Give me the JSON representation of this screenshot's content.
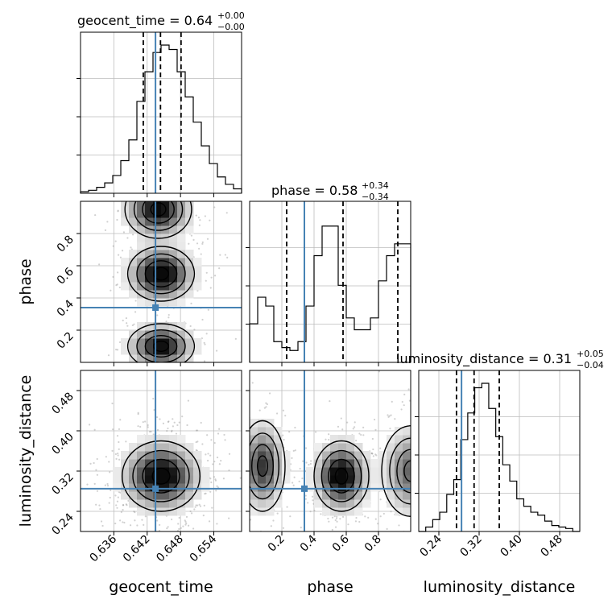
{
  "chart_data": {
    "type": "corner",
    "parameters": [
      {
        "name": "geocent_time",
        "range": [
          0.63,
          0.659
        ],
        "ticks": [
          0.636,
          0.642,
          0.648,
          0.654
        ],
        "tick_labels": [
          "0.636",
          "0.642",
          "0.648",
          "0.654"
        ],
        "truth": 0.6435,
        "quantiles": [
          0.6413,
          0.6444,
          0.6481
        ],
        "title": {
          "text": "geocent_time = 0.64",
          "sup": "+0.00",
          "sub": "−0.00"
        },
        "hist": [
          0.01,
          0.02,
          0.04,
          0.07,
          0.12,
          0.22,
          0.36,
          0.62,
          0.82,
          0.95,
          1.0,
          0.97,
          0.82,
          0.65,
          0.48,
          0.32,
          0.2,
          0.11,
          0.06,
          0.03
        ]
      },
      {
        "name": "phase",
        "range": [
          0.0,
          1.0
        ],
        "ticks": [
          0.2,
          0.4,
          0.6,
          0.8
        ],
        "tick_labels": [
          "0.2",
          "0.4",
          "0.6",
          "0.8"
        ],
        "truth": 0.34,
        "quantiles": [
          0.23,
          0.58,
          0.92
        ],
        "title": {
          "text": "phase = 0.58",
          "sup": "+0.34",
          "sub": "−0.34"
        },
        "hist": [
          0.26,
          0.44,
          0.38,
          0.14,
          0.1,
          0.08,
          0.14,
          0.38,
          0.72,
          0.92,
          0.92,
          0.52,
          0.3,
          0.22,
          0.22,
          0.3,
          0.55,
          0.72,
          0.8,
          0.8
        ]
      },
      {
        "name": "luminosity_distance",
        "range": [
          0.2,
          0.52
        ],
        "ticks": [
          0.24,
          0.32,
          0.4,
          0.48
        ],
        "tick_labels": [
          "0.24",
          "0.32",
          "0.40",
          "0.48"
        ],
        "truth": 0.285,
        "quantiles": [
          0.275,
          0.31,
          0.36
        ],
        "title": {
          "text": "luminosity_distance = 0.31",
          "sup": "+0.05",
          "sub": "−0.04"
        },
        "hist": [
          0.0,
          0.03,
          0.08,
          0.13,
          0.25,
          0.35,
          0.62,
          0.8,
          0.97,
          1.0,
          0.83,
          0.64,
          0.45,
          0.34,
          0.22,
          0.17,
          0.13,
          0.11,
          0.07,
          0.04,
          0.03,
          0.02,
          0.0
        ]
      }
    ],
    "truth_color": "#4682b4",
    "grid": true
  }
}
